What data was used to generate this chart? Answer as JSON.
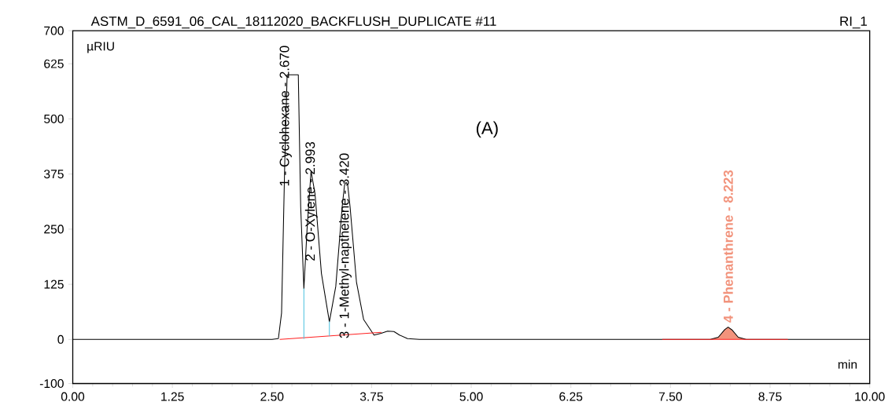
{
  "chart_data": {
    "type": "line",
    "title": "ASTM_D_6591_06_CAL_18112020_BACKFLUSH_DUPLICATE #11",
    "subtitle": "RI_1",
    "xlabel": "min",
    "ylabel": "µRIU",
    "xlim": [
      0,
      10
    ],
    "xticks": [
      {
        "value": 0,
        "label": "0.00"
      },
      {
        "value": 1.25,
        "label": "1.25"
      },
      {
        "value": 2.5,
        "label": "2.50"
      },
      {
        "value": 3.75,
        "label": "3.75"
      },
      {
        "value": 5,
        "label": "5.00"
      },
      {
        "value": 6.25,
        "label": "6.25"
      },
      {
        "value": 7.5,
        "label": "7.50"
      },
      {
        "value": 8.75,
        "label": "8.75"
      },
      {
        "value": 10,
        "label": "10.00"
      }
    ],
    "ylim": [
      -100,
      700
    ],
    "yticks": [
      -100,
      0,
      125,
      250,
      375,
      500,
      625,
      700
    ],
    "series": [
      {
        "type": "area",
        "color": "#f2937c",
        "x": [
          8.0,
          8.1,
          8.18,
          8.223,
          8.27,
          8.35,
          8.45
        ],
        "values": [
          0,
          5,
          22,
          28,
          22,
          5,
          0
        ]
      },
      {
        "color": "#000000",
        "x": [
          0,
          2.5,
          2.58,
          2.62,
          2.66,
          2.69,
          2.83,
          2.86,
          2.9,
          2.94,
          2.99,
          3.04,
          3.12,
          3.22,
          3.3,
          3.38,
          3.41,
          3.43,
          3.45,
          3.48,
          3.56,
          3.65,
          3.78,
          3.87,
          3.95,
          4.03,
          4.1,
          4.2,
          4.35,
          8.0,
          8.1,
          8.18,
          8.223,
          8.27,
          8.35,
          8.45,
          10
        ],
        "values": [
          0,
          0,
          2,
          60,
          400,
          600,
          600,
          300,
          115,
          250,
          382,
          330,
          150,
          40,
          120,
          300,
          350,
          356,
          350,
          300,
          130,
          45,
          10,
          14,
          19,
          18,
          10,
          2,
          0,
          0,
          5,
          22,
          28,
          22,
          5,
          0,
          0
        ]
      },
      {
        "color": "#ff2020",
        "x": [
          2.6,
          3.87
        ],
        "values": [
          0,
          16
        ]
      },
      {
        "color": "#ff2020",
        "x": [
          7.4,
          8.97
        ],
        "values": [
          0,
          0
        ]
      },
      {
        "color": "#4fc3e0",
        "x": [
          2.9,
          2.9
        ],
        "values": [
          2,
          115
        ]
      },
      {
        "color": "#4fc3e0",
        "x": [
          3.22,
          3.22
        ],
        "values": [
          8,
          40
        ]
      }
    ],
    "annotations": [
      {
        "text": "1 - Cyclohexane - 2.670",
        "x": 2.67,
        "y": 600
      },
      {
        "text": "2 - O-Xylene - 2.993",
        "x": 2.993,
        "y": 382
      },
      {
        "text": "3 - 1-Methyl-napthelene - 3.420",
        "x": 3.42,
        "y": 356
      },
      {
        "text": "4 - Phenanthrene - 8.223",
        "x": 8.223,
        "y": 28
      },
      "(A)"
    ]
  }
}
